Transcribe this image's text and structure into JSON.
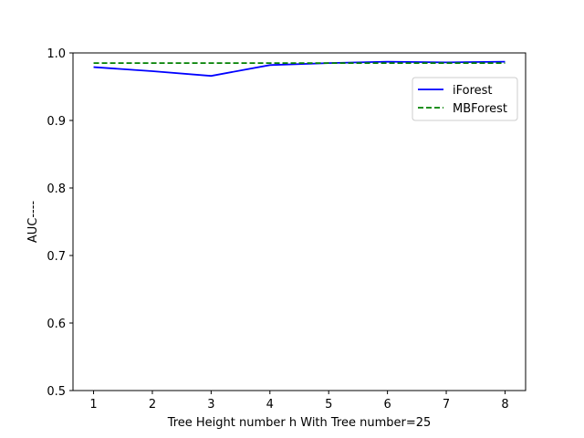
{
  "chart_data": {
    "type": "line",
    "title": "",
    "xlabel": "Tree Height number h With Tree number=25",
    "ylabel": "AUC----",
    "x": [
      1,
      2,
      3,
      4,
      5,
      6,
      7,
      8
    ],
    "xlim": [
      0.65,
      8.35
    ],
    "ylim": [
      0.5,
      1.0
    ],
    "xticks": [
      "1",
      "2",
      "3",
      "4",
      "5",
      "6",
      "7",
      "8"
    ],
    "yticks": [
      "0.5",
      "0.6",
      "0.7",
      "0.8",
      "0.9",
      "1.0"
    ],
    "grid": false,
    "legend_position": "top-right",
    "series": [
      {
        "name": "iForest",
        "color": "#0000ff",
        "dash": "solid",
        "values": [
          0.979,
          0.973,
          0.966,
          0.982,
          0.985,
          0.987,
          0.986,
          0.987
        ]
      },
      {
        "name": "MBForest",
        "color": "#008000",
        "dash": "dashed",
        "values": [
          0.985,
          0.985,
          0.985,
          0.985,
          0.985,
          0.985,
          0.985,
          0.985
        ]
      }
    ]
  }
}
